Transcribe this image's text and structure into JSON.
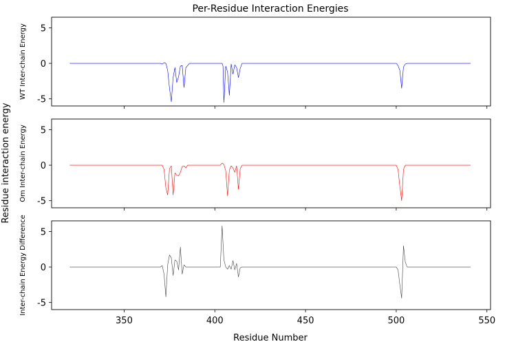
{
  "chart_data": {
    "type": "line",
    "title": "Per-Residue Interaction Energies",
    "xlabel": "Residue Number",
    "ylabel": "Residue interaction energy",
    "xlim": [
      310,
      552
    ],
    "xticks": [
      350,
      400,
      450,
      500,
      550
    ],
    "ylim": [
      -6,
      6.5
    ],
    "yticks": [
      -5,
      0,
      5
    ],
    "grid": false,
    "panels": [
      {
        "ylabel": "WT Inter-chain Energy",
        "color": "#0000ff",
        "points": [
          [
            320,
            0
          ],
          [
            370,
            0
          ],
          [
            371,
            -0.1
          ],
          [
            372,
            0.1
          ],
          [
            373,
            0
          ],
          [
            374,
            -1.0
          ],
          [
            375,
            -3.5
          ],
          [
            376,
            -5.4
          ],
          [
            377,
            -2.0
          ],
          [
            378,
            -0.6
          ],
          [
            379,
            -2.7
          ],
          [
            380,
            -1.9
          ],
          [
            381,
            -0.4
          ],
          [
            382,
            -0.3
          ],
          [
            383,
            -3.4
          ],
          [
            384,
            -0.6
          ],
          [
            385,
            -0.3
          ],
          [
            386,
            0
          ],
          [
            404,
            0
          ],
          [
            404.5,
            -0.4
          ],
          [
            405,
            -5.5
          ],
          [
            406,
            -0.4
          ],
          [
            407,
            -1.2
          ],
          [
            408,
            -4.5
          ],
          [
            409,
            -0.1
          ],
          [
            410,
            -1.5
          ],
          [
            411,
            -0.2
          ],
          [
            412,
            -0.6
          ],
          [
            413,
            -2.0
          ],
          [
            414,
            -0.7
          ],
          [
            415,
            0
          ],
          [
            500,
            0
          ],
          [
            501,
            -0.3
          ],
          [
            502,
            -1.0
          ],
          [
            503,
            -3.5
          ],
          [
            504,
            -0.5
          ],
          [
            505,
            -0.1
          ],
          [
            506,
            0
          ],
          [
            541,
            0
          ]
        ]
      },
      {
        "ylabel": "Om Inter-chain Energy",
        "color": "#ff0000",
        "points": [
          [
            320,
            0
          ],
          [
            371,
            0
          ],
          [
            372,
            -0.6
          ],
          [
            373,
            -3.2
          ],
          [
            374,
            -4.2
          ],
          [
            375,
            -0.5
          ],
          [
            376,
            -0.1
          ],
          [
            377,
            -4.2
          ],
          [
            378,
            -1.1
          ],
          [
            379,
            -1.4
          ],
          [
            380,
            -1.5
          ],
          [
            381,
            -1.0
          ],
          [
            382,
            -0.2
          ],
          [
            383,
            -0.1
          ],
          [
            384,
            -0.4
          ],
          [
            385,
            0
          ],
          [
            403,
            0
          ],
          [
            404,
            0.3
          ],
          [
            405,
            0.1
          ],
          [
            406,
            -0.8
          ],
          [
            407,
            -4.3
          ],
          [
            408,
            -0.7
          ],
          [
            409,
            -0.1
          ],
          [
            410,
            -0.4
          ],
          [
            411,
            -1.0
          ],
          [
            412,
            -0.1
          ],
          [
            413,
            -3.4
          ],
          [
            414,
            -0.5
          ],
          [
            415,
            0
          ],
          [
            500,
            0
          ],
          [
            501,
            -0.6
          ],
          [
            502,
            -3.0
          ],
          [
            503,
            -5.0
          ],
          [
            504,
            -0.6
          ],
          [
            505,
            0
          ],
          [
            541,
            0
          ]
        ]
      },
      {
        "ylabel": "Inter-chain Energy Difference",
        "color": "#404040",
        "points": [
          [
            320,
            0
          ],
          [
            370,
            0
          ],
          [
            371,
            0.2
          ],
          [
            372,
            -1.0
          ],
          [
            373,
            -4.2
          ],
          [
            374,
            0.3
          ],
          [
            375,
            1.7
          ],
          [
            376,
            1.3
          ],
          [
            377,
            -1.2
          ],
          [
            378,
            1.0
          ],
          [
            379,
            0.8
          ],
          [
            380,
            -0.4
          ],
          [
            381,
            2.8
          ],
          [
            382,
            -1.0
          ],
          [
            383,
            0.3
          ],
          [
            384,
            0
          ],
          [
            403,
            0
          ],
          [
            404,
            5.8
          ],
          [
            405,
            1.0
          ],
          [
            406,
            0
          ],
          [
            407,
            -0.3
          ],
          [
            408,
            0.2
          ],
          [
            409,
            -0.3
          ],
          [
            410,
            0.9
          ],
          [
            411,
            -0.4
          ],
          [
            412,
            0.5
          ],
          [
            413,
            -1.4
          ],
          [
            414,
            -0.1
          ],
          [
            415,
            0
          ],
          [
            500,
            0
          ],
          [
            501,
            -0.4
          ],
          [
            502,
            -2.5
          ],
          [
            503,
            -4.4
          ],
          [
            504,
            3.0
          ],
          [
            505,
            0.7
          ],
          [
            506,
            0
          ],
          [
            541,
            0
          ]
        ]
      }
    ]
  }
}
